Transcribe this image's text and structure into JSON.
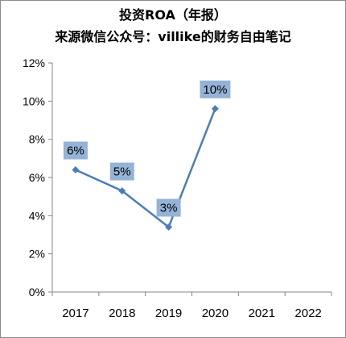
{
  "chart_data": {
    "type": "line",
    "title_line1": "投资ROA（年报）",
    "title_line2": "来源微信公众号：villike的财务自由笔记",
    "categories": [
      "2017",
      "2018",
      "2019",
      "2020",
      "2021",
      "2022"
    ],
    "series": [
      {
        "values": [
          0.064,
          0.053,
          0.034,
          0.096,
          null,
          null
        ]
      }
    ],
    "data_labels": [
      "6%",
      "5%",
      "3%",
      "10%"
    ],
    "y_ticks": [
      "0%",
      "2%",
      "4%",
      "6%",
      "8%",
      "10%",
      "12%"
    ],
    "ylim": [
      0,
      0.12
    ],
    "grid": false,
    "legend": "none",
    "colors": {
      "line": "#4a7ebb",
      "marker": "#4a7ebb",
      "label_box": "#95b3d7",
      "axis": "#868686"
    }
  }
}
